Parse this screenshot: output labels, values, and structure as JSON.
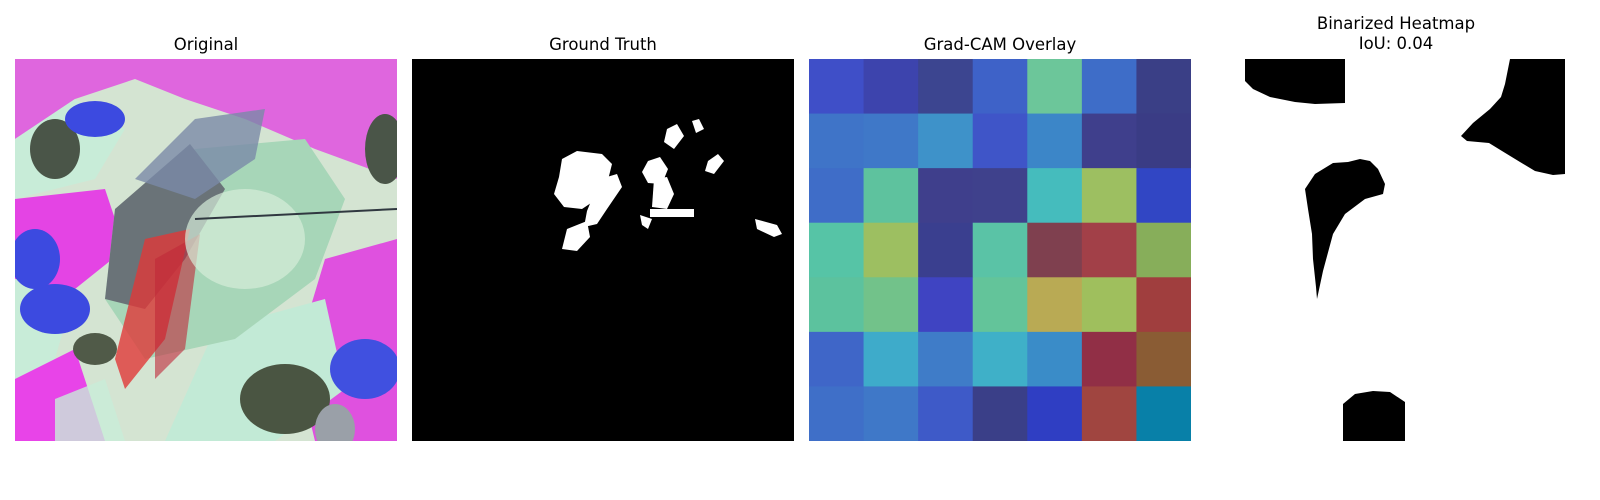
{
  "panels": {
    "original": {
      "title": "Original"
    },
    "ground_truth": {
      "title": "Ground Truth"
    },
    "gradcam": {
      "title": "Grad-CAM Overlay",
      "grid_colors": [
        [
          "#3f4fc8",
          "#3d44ad",
          "#3c4590",
          "#3e62c8",
          "#6cc69a",
          "#3e6dc8",
          "#3a3f86"
        ],
        [
          "#3f74c8",
          "#3f78c8",
          "#3e92c9",
          "#3f55c8",
          "#3c86c8",
          "#3f3f8c",
          "#3a3c85"
        ],
        [
          "#3f6dc8",
          "#5ec29e",
          "#3f3f8c",
          "#3f418c",
          "#45bcbd",
          "#9dbf61",
          "#3146c4"
        ],
        [
          "#56c4a6",
          "#9dbf61",
          "#3a3f8f",
          "#5ac3a6",
          "#7f404f",
          "#a24048",
          "#87ae5a"
        ],
        [
          "#5cc29e",
          "#72c28a",
          "#3f44c2",
          "#63c49a",
          "#b9aa54",
          "#9fbf5d",
          "#a03e3e"
        ],
        [
          "#3f66c8",
          "#3eabca",
          "#3f7cc8",
          "#3fb0c8",
          "#3a8cc8",
          "#912f46",
          "#8a5c34"
        ],
        [
          "#3f6fc8",
          "#3f78c8",
          "#3e5ac8",
          "#3a3f88",
          "#2f3ec3",
          "#a04540",
          "#0880a8"
        ]
      ]
    },
    "binarized": {
      "title_line1": "Binarized Heatmap",
      "title_line2": "IoU: 0.04"
    }
  }
}
